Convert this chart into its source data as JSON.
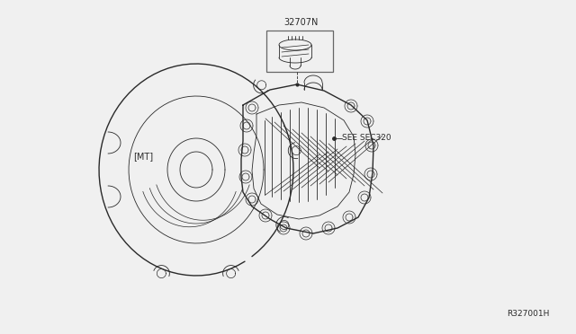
{
  "bg_color": "#f0f0f0",
  "line_color": "#2a2a2a",
  "part_number": "32707N",
  "ref_text": "SEE SEC320",
  "mt_label": "[MT]",
  "doc_number": "R327001H",
  "fig_width": 6.4,
  "fig_height": 3.72,
  "dpi": 100
}
